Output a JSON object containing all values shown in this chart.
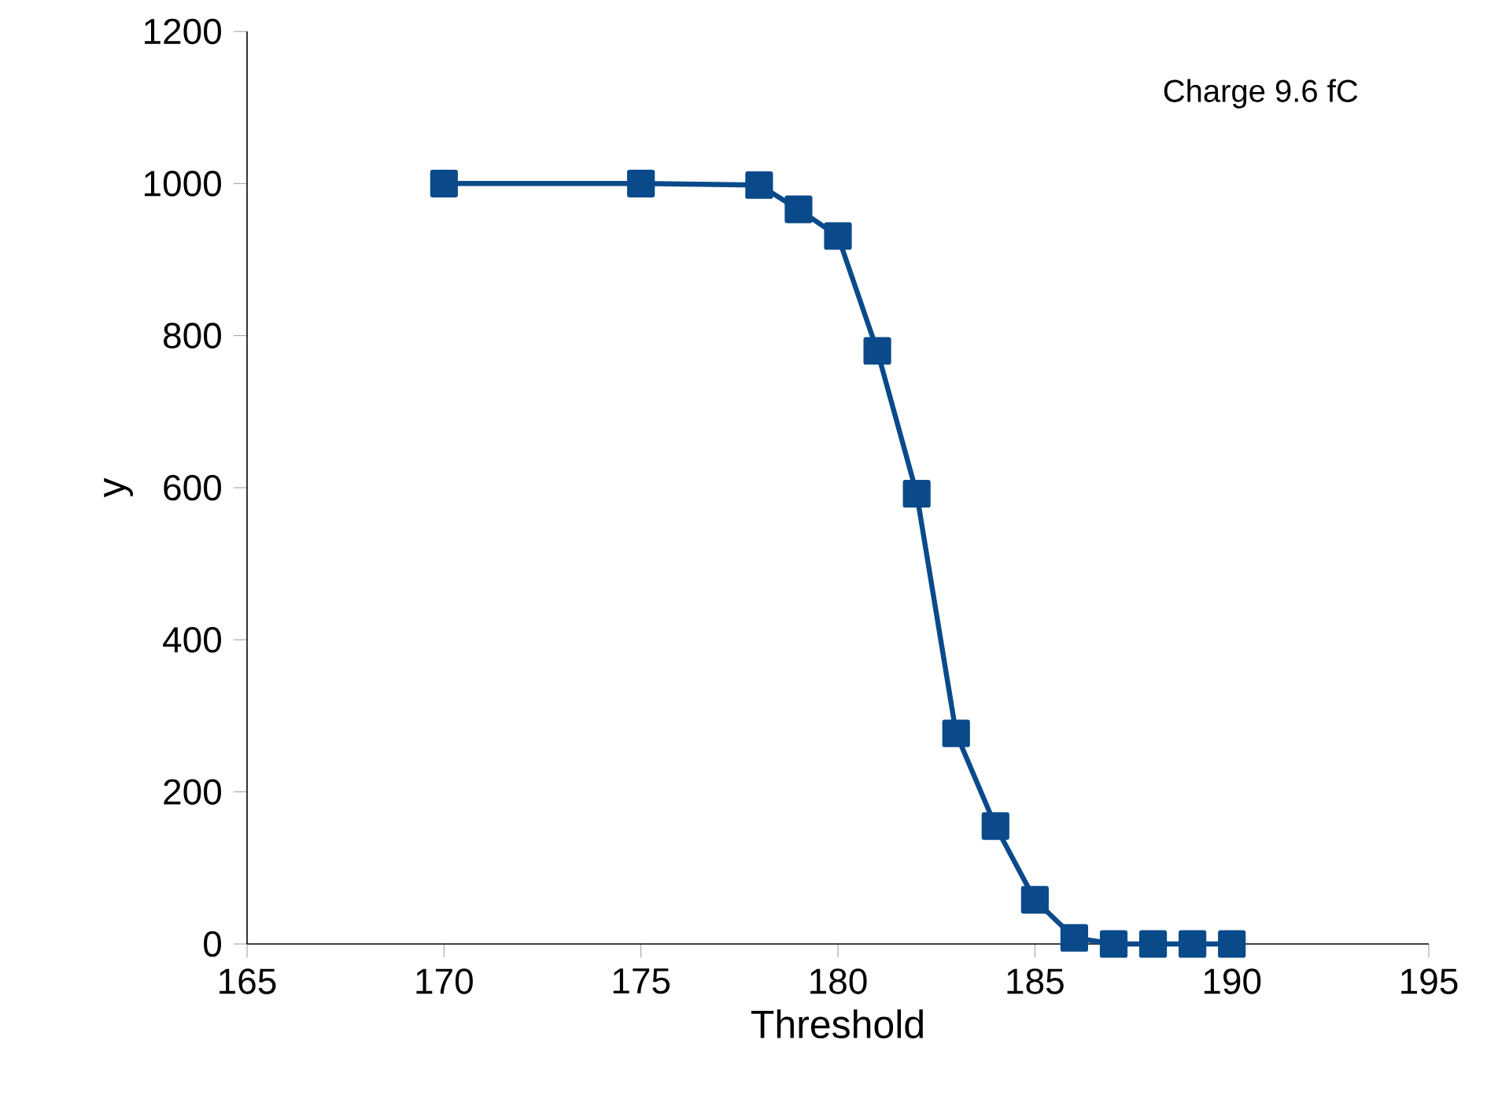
{
  "chart_data": {
    "type": "line",
    "xlabel": "Threshold",
    "ylabel": "y",
    "annotations": [
      "Charge 9.6 fC"
    ],
    "x": [
      170,
      175,
      178,
      179,
      180,
      181,
      182,
      183,
      184,
      185,
      186,
      187,
      188,
      189,
      190
    ],
    "series": [
      {
        "color": "#0a4a8a",
        "values": [
          1000,
          1000,
          998,
          966,
          931,
          780,
          592,
          277,
          155,
          58,
          8,
          0,
          0,
          0,
          0
        ]
      }
    ],
    "xlim": [
      165,
      195
    ],
    "ylim": [
      0,
      1200
    ],
    "xticks": [
      165,
      170,
      175,
      180,
      185,
      190,
      195
    ],
    "yticks": [
      0,
      200,
      400,
      600,
      800,
      1000,
      1200
    ],
    "grid": false,
    "marker": "square",
    "line_style": "solid"
  }
}
